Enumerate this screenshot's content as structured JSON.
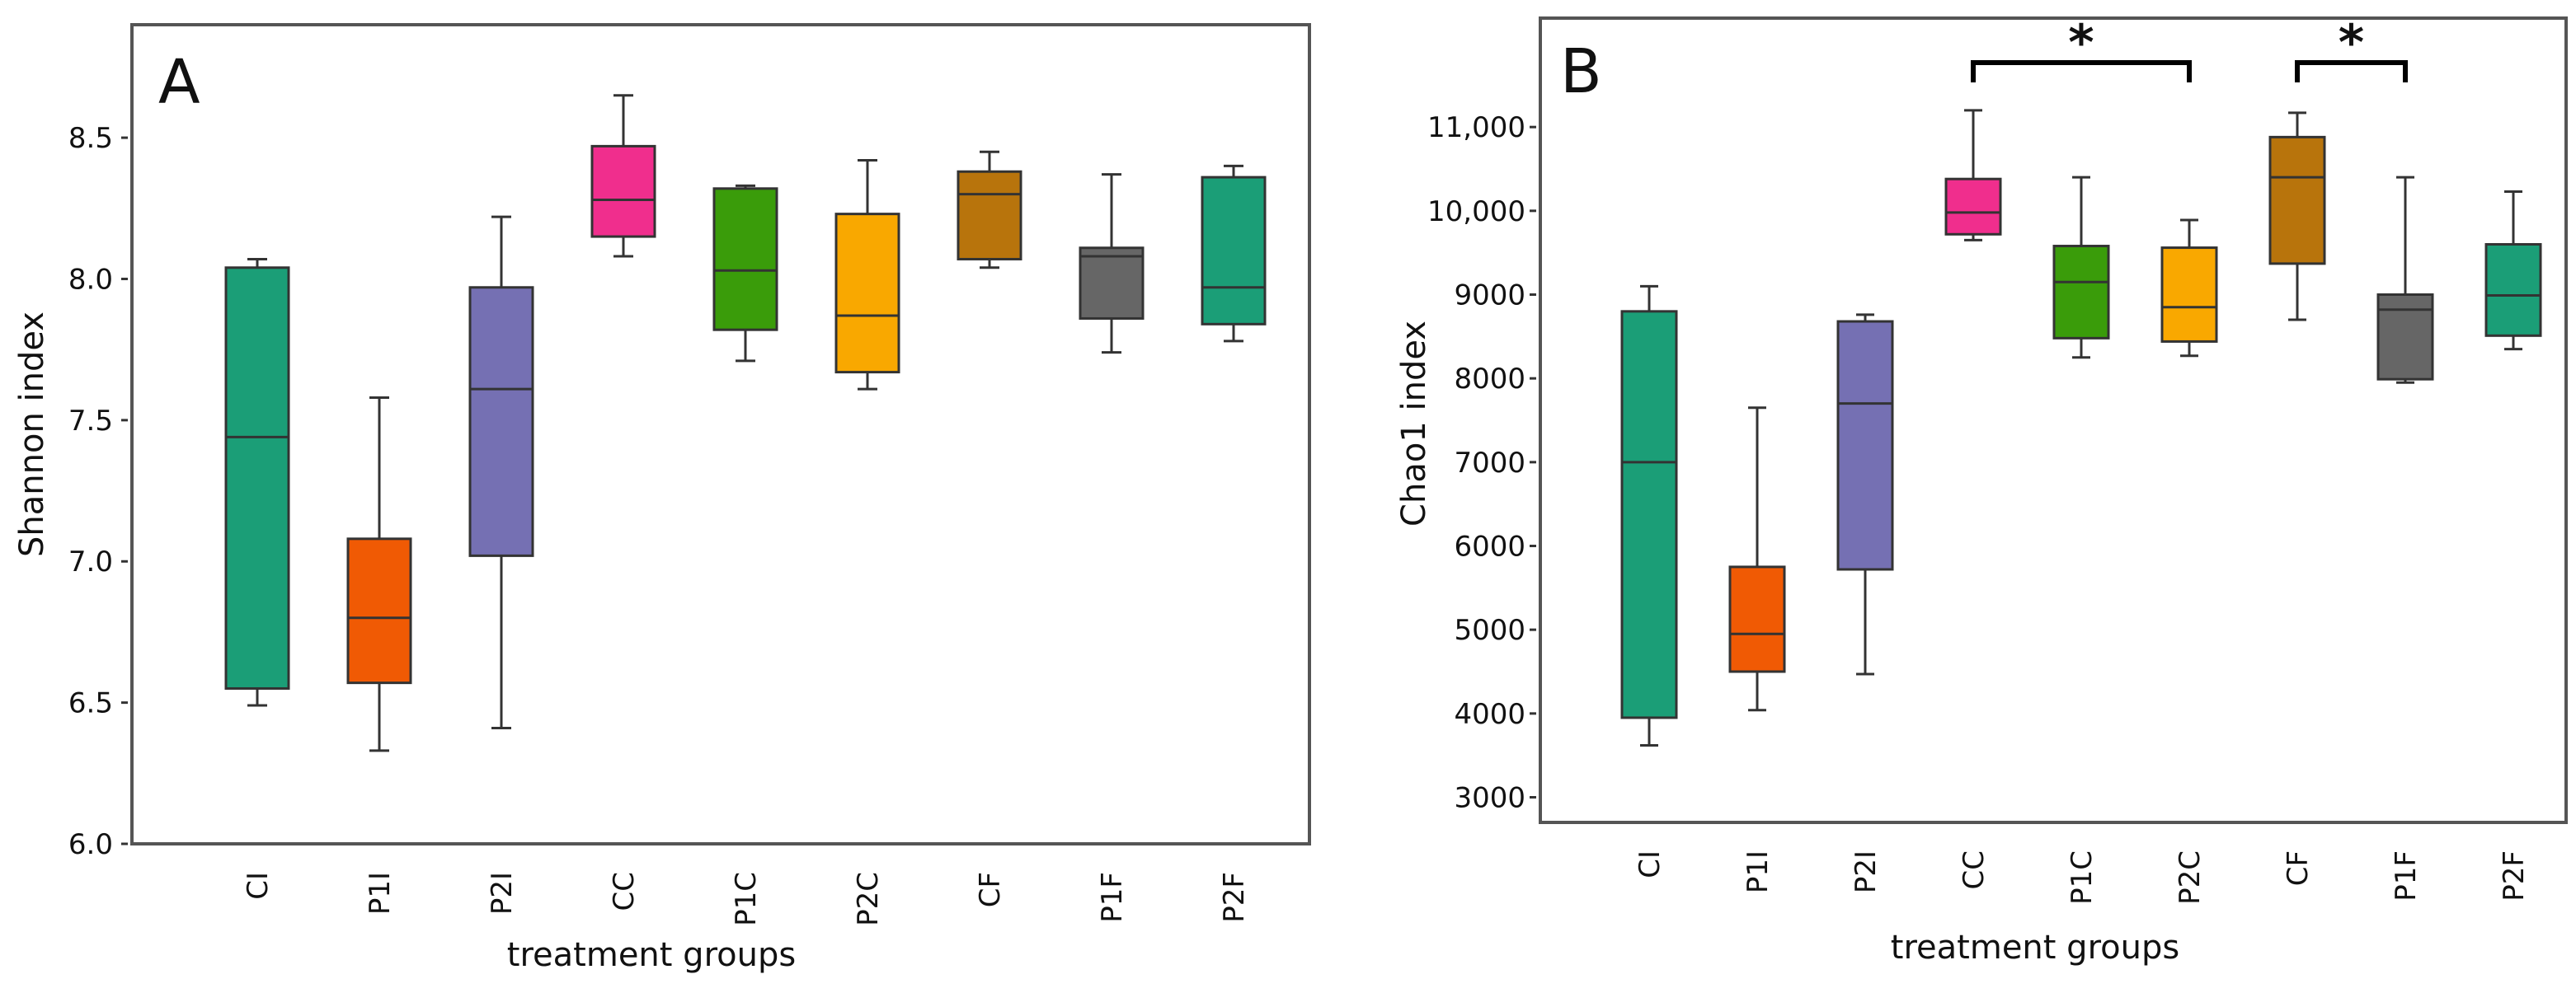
{
  "figure": {
    "panels": [
      {
        "letter": "A",
        "ylabel": "Shannon index",
        "xlabel": "treatment groups"
      },
      {
        "letter": "B",
        "ylabel": "Chao1 index",
        "xlabel": "treatment groups"
      }
    ]
  },
  "chart_data": [
    {
      "type": "box",
      "panel": "A",
      "title": "",
      "xlabel": "treatment groups",
      "ylabel": "Shannon index",
      "ylim": [
        6.0,
        8.9
      ],
      "yticks": [
        6.0,
        6.5,
        7.0,
        7.5,
        8.0,
        8.5
      ],
      "ytick_labels": [
        "6.0",
        "6.5",
        "7.0",
        "7.5",
        "8.0",
        "8.5"
      ],
      "categories": [
        "CI",
        "P1I",
        "P2I",
        "CC",
        "P1C",
        "P2C",
        "CF",
        "P1F",
        "P2F"
      ],
      "colors": [
        "#1b9e77",
        "#f05a04",
        "#7570b3",
        "#f02e8d",
        "#3a9c0a",
        "#f9a800",
        "#b8740c",
        "#666666",
        "#1b9e77"
      ],
      "boxes": [
        {
          "min": 6.49,
          "q1": 6.55,
          "median": 7.44,
          "q3": 8.04,
          "max": 8.07
        },
        {
          "min": 6.33,
          "q1": 6.57,
          "median": 6.8,
          "q3": 7.08,
          "max": 7.58
        },
        {
          "min": 6.41,
          "q1": 7.02,
          "median": 7.61,
          "q3": 7.97,
          "max": 8.22
        },
        {
          "min": 8.08,
          "q1": 8.15,
          "median": 8.28,
          "q3": 8.47,
          "max": 8.65
        },
        {
          "min": 7.71,
          "q1": 7.82,
          "median": 8.03,
          "q3": 8.32,
          "max": 8.33
        },
        {
          "min": 7.61,
          "q1": 7.67,
          "median": 7.87,
          "q3": 8.23,
          "max": 8.42
        },
        {
          "min": 8.04,
          "q1": 8.07,
          "median": 8.3,
          "q3": 8.38,
          "max": 8.45
        },
        {
          "min": 7.74,
          "q1": 7.86,
          "median": 8.08,
          "q3": 8.11,
          "max": 8.37
        },
        {
          "min": 7.78,
          "q1": 7.84,
          "median": 7.97,
          "q3": 8.36,
          "max": 8.4
        }
      ],
      "significance": []
    },
    {
      "type": "box",
      "panel": "B",
      "title": "",
      "xlabel": "treatment groups",
      "ylabel": "Chao1 index",
      "ylim": [
        2700,
        12300
      ],
      "yticks": [
        3000,
        4000,
        5000,
        6000,
        7000,
        8000,
        9000,
        10000,
        11000
      ],
      "ytick_labels": [
        "3000",
        "4000",
        "5000",
        "6000",
        "7000",
        "8000",
        "9000",
        "10,000",
        "11,000"
      ],
      "categories": [
        "CI",
        "P1I",
        "P2I",
        "CC",
        "P1C",
        "P2C",
        "CF",
        "P1F",
        "P2F"
      ],
      "colors": [
        "#1b9e77",
        "#f05a04",
        "#7570b3",
        "#f02e8d",
        "#3a9c0a",
        "#f9a800",
        "#b8740c",
        "#666666",
        "#1b9e77"
      ],
      "boxes": [
        {
          "min": 3620,
          "q1": 3950,
          "median": 7000,
          "q3": 8800,
          "max": 9100
        },
        {
          "min": 4040,
          "q1": 4500,
          "median": 4950,
          "q3": 5750,
          "max": 7650
        },
        {
          "min": 4470,
          "q1": 5720,
          "median": 7700,
          "q3": 8680,
          "max": 8760
        },
        {
          "min": 9650,
          "q1": 9720,
          "median": 9980,
          "q3": 10380,
          "max": 11200
        },
        {
          "min": 8250,
          "q1": 8480,
          "median": 9150,
          "q3": 9580,
          "max": 10400
        },
        {
          "min": 8270,
          "q1": 8440,
          "median": 8850,
          "q3": 9560,
          "max": 9890
        },
        {
          "min": 8700,
          "q1": 9370,
          "median": 10400,
          "q3": 10880,
          "max": 11170
        },
        {
          "min": 7950,
          "q1": 7990,
          "median": 8820,
          "q3": 9000,
          "max": 10400
        },
        {
          "min": 8350,
          "q1": 8510,
          "median": 8990,
          "q3": 9600,
          "max": 10230
        }
      ],
      "significance": [
        {
          "from": "CC",
          "to": "P2C",
          "label": "*"
        },
        {
          "from": "CF",
          "to": "P1F",
          "label": "*"
        }
      ]
    }
  ]
}
